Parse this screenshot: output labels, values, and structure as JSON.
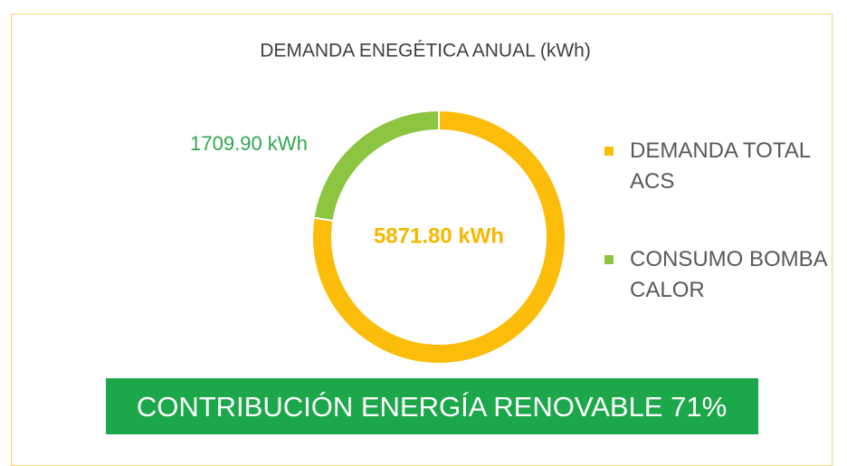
{
  "chart_data": {
    "type": "donut",
    "title": "DEMANDA ENEGÉTICA ANUAL (kWh)",
    "categories": [
      "DEMANDA TOTAL ACS",
      "CONSUMO BOMBA CALOR"
    ],
    "values": [
      5871.8,
      1709.9
    ],
    "value_labels": [
      "5871.80 kWh",
      "1709.90 kWh"
    ],
    "colors": [
      "#fbbd0a",
      "#8cc540"
    ],
    "legend": "right",
    "annotation": "CONTRIBUCIÓN ENERGÍA RENOVABLE 71%"
  }
}
